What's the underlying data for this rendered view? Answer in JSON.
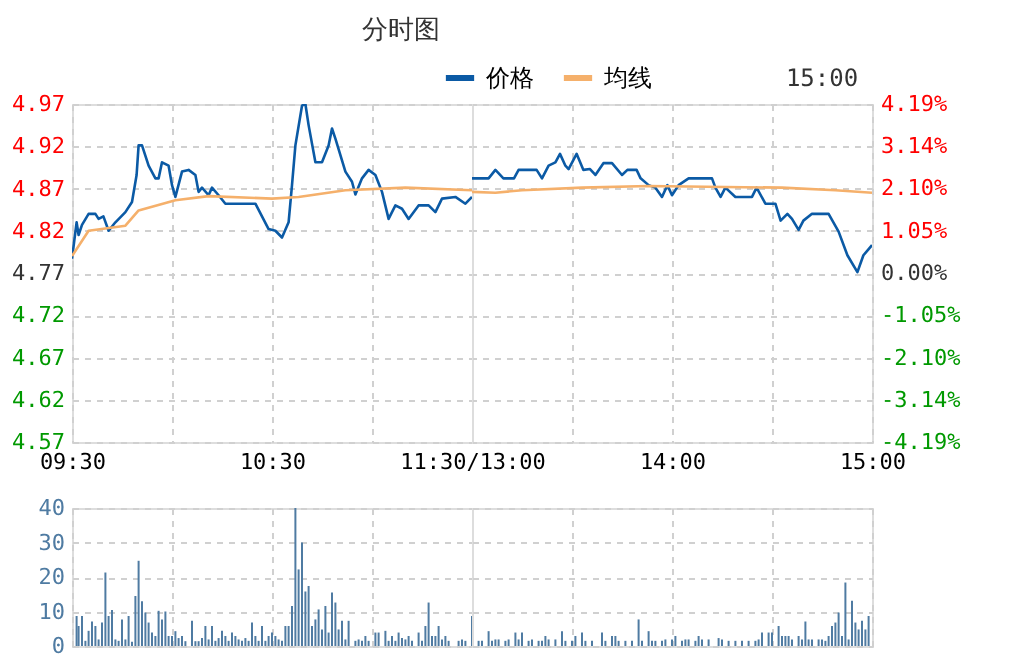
{
  "chart_data": [
    {
      "type": "line",
      "title": "分时图",
      "legend": "top",
      "grid": true,
      "tick_labels": "xy",
      "xlim": [
        9.5,
        11.5
      ],
      "xticks": [
        {
          "value": 9.5,
          "label": "09:30"
        },
        {
          "value": 10,
          "label": null
        },
        {
          "value": 10.5,
          "label": "10:30"
        },
        {
          "value": 11,
          "label": null
        },
        {
          "value": 11.5,
          "label": "11:30/13:00"
        }
      ],
      "ylim": [
        4.57,
        4.97
      ],
      "yticks": [
        4.57,
        4.62,
        4.67,
        4.72,
        4.77,
        4.82,
        4.87,
        4.92,
        4.97
      ],
      "series": [
        {
          "name": "价格",
          "color": "#0b5aa5",
          "x": [
            9.5,
            9.523,
            9.533,
            9.55,
            9.583,
            9.617,
            9.633,
            9.657,
            9.683,
            9.717,
            9.767,
            9.8,
            9.823,
            9.833,
            9.85,
            9.883,
            9.917,
            9.933,
            9.95,
            9.983,
            10,
            10.017,
            10.05,
            10.083,
            10.117,
            10.133,
            10.15,
            10.183,
            10.2,
            10.233,
            10.267,
            10.417,
            10.483,
            10.517,
            10.55,
            10.583,
            10.6,
            10.617,
            10.65,
            10.667,
            10.683,
            10.717,
            10.75,
            10.783,
            10.8,
            10.817,
            10.867,
            10.9,
            10.917,
            10.95,
            10.983,
            11.017,
            11.05,
            11.083,
            11.117,
            11.15,
            11.183,
            11.233,
            11.283,
            11.317,
            11.35,
            11.417,
            11.467,
            11.5
          ],
          "values": [
            4.787,
            4.83,
            4.815,
            4.827,
            4.84,
            4.84,
            4.834,
            4.837,
            4.82,
            4.83,
            4.842,
            4.854,
            4.886,
            4.921,
            4.921,
            4.897,
            4.882,
            4.882,
            4.901,
            4.897,
            4.874,
            4.86,
            4.89,
            4.892,
            4.886,
            4.866,
            4.871,
            4.862,
            4.871,
            4.862,
            4.852,
            4.852,
            4.822,
            4.82,
            4.812,
            4.83,
            4.874,
            4.921,
            4.968,
            4.97,
            4.945,
            4.901,
            4.901,
            4.921,
            4.941,
            4.929,
            4.89,
            4.878,
            4.863,
            4.882,
            4.892,
            4.886,
            4.866,
            4.834,
            4.85,
            4.846,
            4.834,
            4.85,
            4.85,
            4.842,
            4.858,
            4.86,
            4.852,
            4.86
          ]
        },
        {
          "name": "均线",
          "color": "#f5b06b",
          "x": [
            9.5,
            9.583,
            9.767,
            9.833,
            10.017,
            10.183,
            10.5,
            10.633,
            10.867,
            11.167,
            11.5
          ],
          "values": [
            4.79,
            4.82,
            4.826,
            4.844,
            4.856,
            4.861,
            4.858,
            4.86,
            4.868,
            4.871,
            4.868
          ]
        }
      ]
    },
    {
      "type": "line",
      "annotations": [
        "15:00"
      ],
      "grid": true,
      "tick_labels": "xy2",
      "xlim": [
        13,
        15
      ],
      "xticks": [
        {
          "value": 13.5,
          "label": null
        },
        {
          "value": 14,
          "label": "14:00"
        },
        {
          "value": 14.5,
          "label": null
        },
        {
          "value": 15,
          "label": "15:00"
        }
      ],
      "ylim": [
        4.57,
        4.97
      ],
      "y2lim": [
        -4.19,
        4.19
      ],
      "y2ticks": [
        {
          "value": -4.19,
          "label": "-4.19%"
        },
        {
          "value": -3.14,
          "label": "-3.14%"
        },
        {
          "value": -2.1,
          "label": "-2.10%"
        },
        {
          "value": -1.05,
          "label": "-1.05%"
        },
        {
          "value": 0,
          "label": "0.00%"
        },
        {
          "value": 1.05,
          "label": "1.05%"
        },
        {
          "value": 2.1,
          "label": "2.10%"
        },
        {
          "value": 3.14,
          "label": "3.14%"
        },
        {
          "value": 4.19,
          "label": "4.19%"
        }
      ],
      "series": [
        {
          "color": "#0b5aa5",
          "x": [
            13,
            13.083,
            13.117,
            13.157,
            13.21,
            13.233,
            13.323,
            13.35,
            13.383,
            13.417,
            13.44,
            13.467,
            13.483,
            13.523,
            13.557,
            13.59,
            13.617,
            13.657,
            13.7,
            13.75,
            13.777,
            13.823,
            13.843,
            13.883,
            13.917,
            13.95,
            13.977,
            14,
            14.033,
            14.083,
            14.167,
            14.2,
            14.217,
            14.243,
            14.267,
            14.317,
            14.4,
            14.423,
            14.467,
            14.517,
            14.543,
            14.577,
            14.6,
            14.633,
            14.657,
            14.7,
            14.783,
            14.833,
            14.877,
            14.927,
            14.957,
            15
          ],
          "values": [
            4.882,
            4.882,
            4.892,
            4.882,
            4.882,
            4.892,
            4.892,
            4.882,
            4.897,
            4.901,
            4.911,
            4.897,
            4.893,
            4.911,
            4.892,
            4.893,
            4.886,
            4.9,
            4.9,
            4.886,
            4.892,
            4.892,
            4.882,
            4.874,
            4.871,
            4.86,
            4.874,
            4.862,
            4.874,
            4.882,
            4.882,
            4.882,
            4.871,
            4.86,
            4.871,
            4.86,
            4.86,
            4.871,
            4.852,
            4.852,
            4.832,
            4.84,
            4.834,
            4.821,
            4.832,
            4.84,
            4.84,
            4.819,
            4.791,
            4.771,
            4.791,
            4.803
          ]
        },
        {
          "color": "#f5b06b",
          "x": [
            13,
            13.117,
            13.25,
            13.55,
            13.883,
            14.55,
            14.817,
            15
          ],
          "values": [
            4.866,
            4.865,
            4.868,
            4.871,
            4.873,
            4.871,
            4.868,
            4.865
          ]
        }
      ]
    },
    {
      "type": "bar",
      "color": "#4f7ba2",
      "grid": true,
      "tick_labels": "y",
      "xlim": [
        9.5,
        11.5
      ],
      "xticks": [
        {
          "value": 9.5,
          "label": null
        },
        {
          "value": 10,
          "label": null
        },
        {
          "value": 10.5,
          "label": null
        },
        {
          "value": 11,
          "label": null
        },
        {
          "value": 11.5,
          "label": null
        }
      ],
      "ylim": [
        0,
        40
      ],
      "yticks": [
        0,
        10,
        20,
        30,
        40
      ],
      "x": [
        9.523,
        9.533,
        9.55,
        9.567,
        9.583,
        9.6,
        9.617,
        9.633,
        9.65,
        9.667,
        9.683,
        9.7,
        9.717,
        9.733,
        9.75,
        9.767,
        9.783,
        9.8,
        9.817,
        9.833,
        9.85,
        9.867,
        9.883,
        9.9,
        9.917,
        9.933,
        9.95,
        9.967,
        9.983,
        10,
        10.017,
        10.033,
        10.05,
        10.067,
        10.1,
        10.117,
        10.133,
        10.15,
        10.167,
        10.183,
        10.2,
        10.217,
        10.233,
        10.25,
        10.267,
        10.283,
        10.3,
        10.317,
        10.333,
        10.35,
        10.367,
        10.383,
        10.4,
        10.417,
        10.433,
        10.45,
        10.467,
        10.483,
        10.5,
        10.517,
        10.533,
        10.55,
        10.567,
        10.583,
        10.6,
        10.617,
        10.633,
        10.65,
        10.667,
        10.683,
        10.7,
        10.717,
        10.733,
        10.75,
        10.767,
        10.783,
        10.8,
        10.817,
        10.833,
        10.85,
        10.867,
        10.883,
        10.917,
        10.933,
        10.95,
        10.967,
        10.983,
        11.017,
        11.033,
        11.067,
        11.083,
        11.1,
        11.117,
        11.133,
        11.15,
        11.167,
        11.183,
        11.2,
        11.233,
        11.25,
        11.267,
        11.283,
        11.3,
        11.317,
        11.333,
        11.35,
        11.367,
        11.383,
        11.433,
        11.45,
        11.467,
        11.5
      ],
      "values": [
        8.7,
        5.8,
        8.7,
        1.5,
        4.4,
        7.1,
        5.8,
        1.9,
        6.8,
        21.3,
        8.7,
        10.4,
        1.9,
        1.5,
        7.7,
        1.9,
        8.7,
        1.2,
        14.5,
        24.7,
        13,
        9.7,
        6.8,
        3.9,
        2.9,
        10.2,
        7.7,
        10,
        2.9,
        2.9,
        4.3,
        2.3,
        2.9,
        1.4,
        7.3,
        1.4,
        1.4,
        2.3,
        5.8,
        1.9,
        5.8,
        1.5,
        2.3,
        4.4,
        2.9,
        1.5,
        3.9,
        2.9,
        1.9,
        1.5,
        2.3,
        1.5,
        6.8,
        2.9,
        1.5,
        5.8,
        1.5,
        2.9,
        3.9,
        2.9,
        1.9,
        1.5,
        5.8,
        5.8,
        11.6,
        40,
        22.2,
        30,
        15.8,
        17.4,
        5.8,
        7.7,
        10.6,
        4.8,
        11.6,
        3.9,
        15.5,
        12.6,
        4.8,
        7.3,
        1.9,
        7.3,
        1.5,
        1.9,
        1.5,
        2.9,
        1.5,
        3.9,
        3.9,
        4.4,
        1.5,
        2.9,
        1.5,
        3.9,
        2.3,
        1.9,
        2.9,
        1.5,
        3.9,
        1.5,
        5.8,
        12.6,
        2.9,
        2.9,
        5.8,
        1.9,
        2.9,
        1.5,
        1.5,
        1.9,
        1.5,
        8.7
      ]
    },
    {
      "type": "bar",
      "color": "#4f7ba2",
      "grid": true,
      "tick_labels": false,
      "xlim": [
        13,
        15
      ],
      "xticks": [
        {
          "value": 13.5,
          "label": null
        },
        {
          "value": 14,
          "label": null
        },
        {
          "value": 14.5,
          "label": null
        },
        {
          "value": 15,
          "label": null
        }
      ],
      "ylim": [
        0,
        40
      ],
      "yticks": [
        0,
        10,
        20,
        30,
        40
      ],
      "x": [
        13.033,
        13.05,
        13.083,
        13.1,
        13.117,
        13.133,
        13.167,
        13.183,
        13.217,
        13.233,
        13.25,
        13.283,
        13.3,
        13.333,
        13.35,
        13.367,
        13.383,
        13.417,
        13.45,
        13.467,
        13.5,
        13.517,
        13.55,
        13.567,
        13.6,
        13.65,
        13.667,
        13.7,
        13.717,
        13.733,
        13.767,
        13.8,
        13.833,
        13.85,
        13.883,
        13.9,
        13.917,
        13.95,
        13.967,
        14,
        14.017,
        14.05,
        14.067,
        14.083,
        14.117,
        14.133,
        14.15,
        14.183,
        14.233,
        14.25,
        14.283,
        14.317,
        14.35,
        14.383,
        14.417,
        14.433,
        14.45,
        14.483,
        14.5,
        14.533,
        14.55,
        14.567,
        14.583,
        14.6,
        14.633,
        14.65,
        14.667,
        14.683,
        14.7,
        14.733,
        14.75,
        14.767,
        14.783,
        14.8,
        14.817,
        14.833,
        14.85,
        14.867,
        14.883,
        14.9,
        14.917,
        14.933,
        14.95,
        14.967,
        14.983
      ],
      "values": [
        1.5,
        1.5,
        4.3,
        1.5,
        1.9,
        1.9,
        1.5,
        1.9,
        3.9,
        1.9,
        3.9,
        1.5,
        1.9,
        1.5,
        1.5,
        2.9,
        1.9,
        1.9,
        4.3,
        1.5,
        1.5,
        2.9,
        3.9,
        1.5,
        1.5,
        3.9,
        1.5,
        2.9,
        2.9,
        1.5,
        1.5,
        1.5,
        7.7,
        1.5,
        4.3,
        1.5,
        1.5,
        1.5,
        1.9,
        1.9,
        2.9,
        1.5,
        1.9,
        1.9,
        1.5,
        2.9,
        1.9,
        1.9,
        2.3,
        1.9,
        1.5,
        1.5,
        1.5,
        1.5,
        1.5,
        1.9,
        3.9,
        3.9,
        3.9,
        5.8,
        2.9,
        2.9,
        2.9,
        1.9,
        2.9,
        1.9,
        7.1,
        1.9,
        1.9,
        1.9,
        1.9,
        1.5,
        2.9,
        5.8,
        6.8,
        9.7,
        2.9,
        18.4,
        1.9,
        13.1,
        6.8,
        4.8,
        7.3,
        4.8,
        8.7
      ]
    }
  ]
}
